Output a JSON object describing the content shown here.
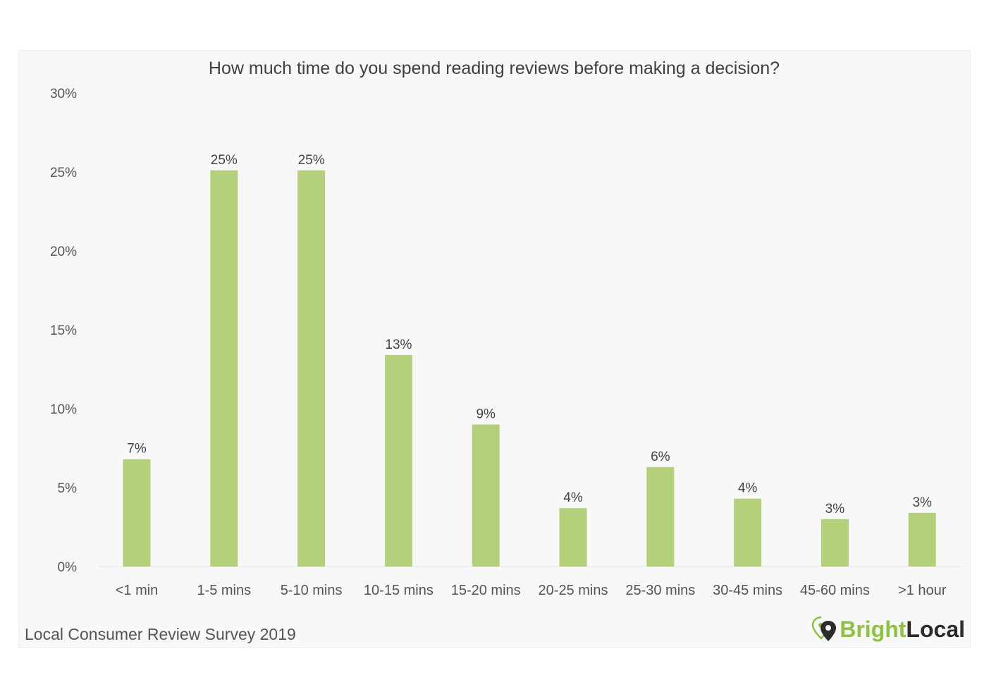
{
  "chart_data": {
    "type": "bar",
    "title": "How much time do you spend reading reviews before making a decision?",
    "categories": [
      "<1 min",
      "1-5 mins",
      "5-10 mins",
      "10-15 mins",
      "15-20 mins",
      "20-25 mins",
      "25-30 mins",
      "30-45 mins",
      "45-60 mins",
      ">1 hour"
    ],
    "values": [
      6.8,
      25.1,
      25.1,
      13.4,
      9.0,
      3.7,
      6.3,
      4.3,
      3.0,
      3.4
    ],
    "data_labels": [
      "7%",
      "25%",
      "25%",
      "13%",
      "9%",
      "4%",
      "6%",
      "4%",
      "3%",
      "3%"
    ],
    "yticks": [
      "0%",
      "5%",
      "10%",
      "15%",
      "20%",
      "25%",
      "30%"
    ],
    "ylim": [
      0,
      30
    ],
    "xlabel": "",
    "ylabel": "",
    "grid": false,
    "bar_color": "#b5d07a"
  },
  "footer": {
    "source": "Local Consumer Review Survey 2019"
  },
  "brand": {
    "part1": "Bright",
    "part2": "Local",
    "icon": "map-pin-icon"
  }
}
